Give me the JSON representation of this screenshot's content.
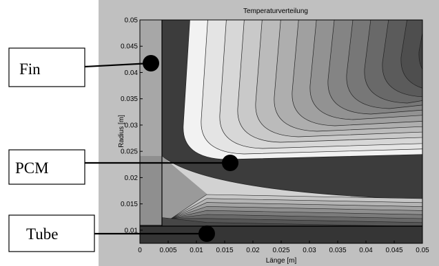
{
  "chart_data": {
    "type": "contour",
    "title": "Temperaturverteilung",
    "xlabel": "Länge [m]",
    "ylabel": "Radius [m]",
    "xlim": [
      0,
      0.05
    ],
    "ylim": [
      0.0075,
      0.05
    ],
    "x_ticks": [
      "0",
      "0.005",
      "0.01",
      "0.015",
      "0.02",
      "0.025",
      "0.03",
      "0.035",
      "0.04",
      "0.045",
      "0.05"
    ],
    "y_ticks": [
      "0.01",
      "0.015",
      "0.02",
      "0.025",
      "0.03",
      "0.035",
      "0.04",
      "0.045",
      "0.05"
    ],
    "grid": false,
    "regions": [
      {
        "label": "Fin",
        "x": 0.0015,
        "y": 0.0425
      },
      {
        "label": "PCM",
        "x": 0.0155,
        "y": 0.0238
      },
      {
        "label": "Tube",
        "x": 0.012,
        "y": 0.0095
      }
    ],
    "colors": {
      "frame_background": "#c0c0c0",
      "fin": "#a7a7a7",
      "fin_lower": "#8f8f8f",
      "tube": "#353535",
      "hot_core": "#f3f3f3",
      "cold_corner": "#3c3c3c"
    }
  }
}
